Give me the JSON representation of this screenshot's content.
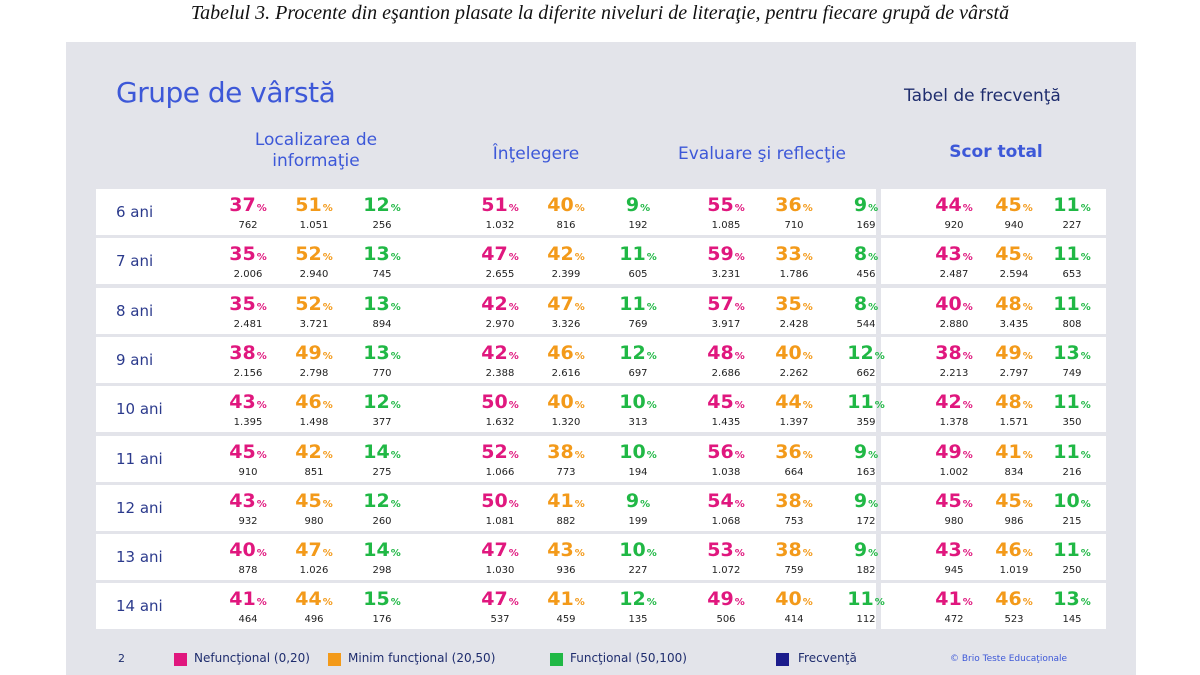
{
  "caption": "Tabelul 3. Procente din eşantion plasate la diferite niveluri de literaţie, pentru fiecare grupă de vârstă",
  "title": "Grupe de vârstă",
  "freq_title": "Tabel de frecvenţă",
  "columns": {
    "loc_line1": "Localizarea de",
    "loc_line2": "informaţie",
    "int": "Înţelegere",
    "eval": "Evaluare şi reflecţie",
    "total": "Scor total"
  },
  "percent_symbol": "%",
  "rows": [
    {
      "age": "6 ani",
      "cells": [
        [
          "37",
          "762"
        ],
        [
          "51",
          "1.051"
        ],
        [
          "12",
          "256"
        ],
        [
          "51",
          "1.032"
        ],
        [
          "40",
          "816"
        ],
        [
          "9",
          "192"
        ],
        [
          "55",
          "1.085"
        ],
        [
          "36",
          "710"
        ],
        [
          "9",
          "169"
        ],
        [
          "44",
          "920"
        ],
        [
          "45",
          "940"
        ],
        [
          "11",
          "227"
        ]
      ]
    },
    {
      "age": "7 ani",
      "cells": [
        [
          "35",
          "2.006"
        ],
        [
          "52",
          "2.940"
        ],
        [
          "13",
          "745"
        ],
        [
          "47",
          "2.655"
        ],
        [
          "42",
          "2.399"
        ],
        [
          "11",
          "605"
        ],
        [
          "59",
          "3.231"
        ],
        [
          "33",
          "1.786"
        ],
        [
          "8",
          "456"
        ],
        [
          "43",
          "2.487"
        ],
        [
          "45",
          "2.594"
        ],
        [
          "11",
          "653"
        ]
      ]
    },
    {
      "age": "8 ani",
      "cells": [
        [
          "35",
          "2.481"
        ],
        [
          "52",
          "3.721"
        ],
        [
          "13",
          "894"
        ],
        [
          "42",
          "2.970"
        ],
        [
          "47",
          "3.326"
        ],
        [
          "11",
          "769"
        ],
        [
          "57",
          "3.917"
        ],
        [
          "35",
          "2.428"
        ],
        [
          "8",
          "544"
        ],
        [
          "40",
          "2.880"
        ],
        [
          "48",
          "3.435"
        ],
        [
          "11",
          "808"
        ]
      ]
    },
    {
      "age": "9 ani",
      "cells": [
        [
          "38",
          "2.156"
        ],
        [
          "49",
          "2.798"
        ],
        [
          "13",
          "770"
        ],
        [
          "42",
          "2.388"
        ],
        [
          "46",
          "2.616"
        ],
        [
          "12",
          "697"
        ],
        [
          "48",
          "2.686"
        ],
        [
          "40",
          "2.262"
        ],
        [
          "12",
          "662"
        ],
        [
          "38",
          "2.213"
        ],
        [
          "49",
          "2.797"
        ],
        [
          "13",
          "749"
        ]
      ]
    },
    {
      "age": "10 ani",
      "cells": [
        [
          "43",
          "1.395"
        ],
        [
          "46",
          "1.498"
        ],
        [
          "12",
          "377"
        ],
        [
          "50",
          "1.632"
        ],
        [
          "40",
          "1.320"
        ],
        [
          "10",
          "313"
        ],
        [
          "45",
          "1.435"
        ],
        [
          "44",
          "1.397"
        ],
        [
          "11",
          "359"
        ],
        [
          "42",
          "1.378"
        ],
        [
          "48",
          "1.571"
        ],
        [
          "11",
          "350"
        ]
      ]
    },
    {
      "age": "11 ani",
      "cells": [
        [
          "45",
          "910"
        ],
        [
          "42",
          "851"
        ],
        [
          "14",
          "275"
        ],
        [
          "52",
          "1.066"
        ],
        [
          "38",
          "773"
        ],
        [
          "10",
          "194"
        ],
        [
          "56",
          "1.038"
        ],
        [
          "36",
          "664"
        ],
        [
          "9",
          "163"
        ],
        [
          "49",
          "1.002"
        ],
        [
          "41",
          "834"
        ],
        [
          "11",
          "216"
        ]
      ]
    },
    {
      "age": "12 ani",
      "cells": [
        [
          "43",
          "932"
        ],
        [
          "45",
          "980"
        ],
        [
          "12",
          "260"
        ],
        [
          "50",
          "1.081"
        ],
        [
          "41",
          "882"
        ],
        [
          "9",
          "199"
        ],
        [
          "54",
          "1.068"
        ],
        [
          "38",
          "753"
        ],
        [
          "9",
          "172"
        ],
        [
          "45",
          "980"
        ],
        [
          "45",
          "986"
        ],
        [
          "10",
          "215"
        ]
      ]
    },
    {
      "age": "13 ani",
      "cells": [
        [
          "40",
          "878"
        ],
        [
          "47",
          "1.026"
        ],
        [
          "14",
          "298"
        ],
        [
          "47",
          "1.030"
        ],
        [
          "43",
          "936"
        ],
        [
          "10",
          "227"
        ],
        [
          "53",
          "1.072"
        ],
        [
          "38",
          "759"
        ],
        [
          "9",
          "182"
        ],
        [
          "43",
          "945"
        ],
        [
          "46",
          "1.019"
        ],
        [
          "11",
          "250"
        ]
      ]
    },
    {
      "age": "14 ani",
      "cells": [
        [
          "41",
          "464"
        ],
        [
          "44",
          "496"
        ],
        [
          "15",
          "176"
        ],
        [
          "47",
          "537"
        ],
        [
          "41",
          "459"
        ],
        [
          "12",
          "135"
        ],
        [
          "49",
          "506"
        ],
        [
          "40",
          "414"
        ],
        [
          "11",
          "112"
        ],
        [
          "41",
          "472"
        ],
        [
          "46",
          "523"
        ],
        [
          "13",
          "145"
        ]
      ]
    }
  ],
  "legend": {
    "page": "2",
    "items": [
      {
        "label": "Nefuncţional (0,20)",
        "color": "#e0177e"
      },
      {
        "label": "Minim funcţional (20,50)",
        "color": "#f39a1a"
      },
      {
        "label": "Funcţional (50,100)",
        "color": "#20b845"
      },
      {
        "label": "Frecvenţă",
        "color": "#1c1c8c"
      }
    ],
    "copyright": "© Brio Teste Educaţionale"
  }
}
